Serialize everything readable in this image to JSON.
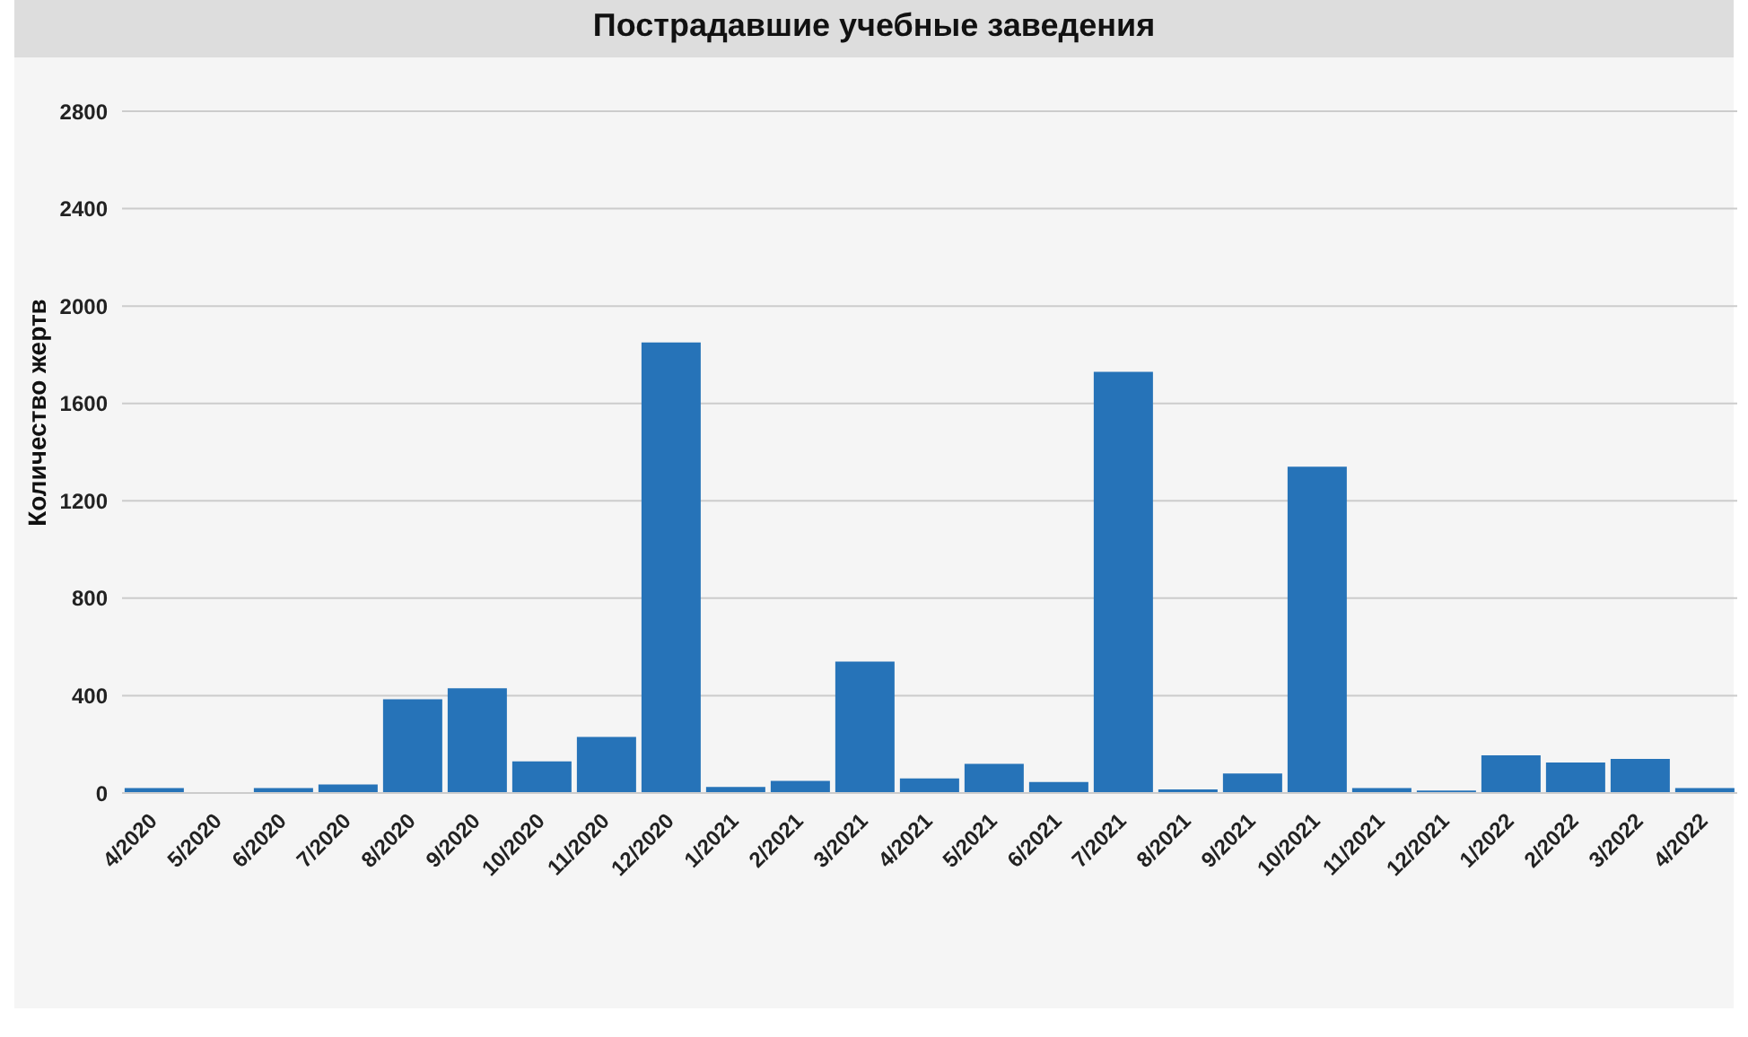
{
  "chart_data": {
    "type": "bar",
    "title": "Пострадавшие учебные заведения",
    "ylabel": "Количество жертв",
    "categories": [
      "4/2020",
      "5/2020",
      "6/2020",
      "7/2020",
      "8/2020",
      "9/2020",
      "10/2020",
      "11/2020",
      "12/2020",
      "1/2021",
      "2/2021",
      "3/2021",
      "4/2021",
      "5/2021",
      "6/2021",
      "7/2021",
      "8/2021",
      "9/2021",
      "10/2021",
      "11/2021",
      "12/2021",
      "1/2022",
      "2/2022",
      "3/2022",
      "4/2022"
    ],
    "values": [
      20,
      0,
      20,
      35,
      385,
      430,
      130,
      230,
      1850,
      25,
      50,
      540,
      60,
      120,
      45,
      1730,
      15,
      80,
      1340,
      20,
      10,
      155,
      125,
      140,
      20
    ],
    "color": "#2673b8",
    "ylim": [
      0,
      2800
    ],
    "yticks": [
      0,
      400,
      800,
      1200,
      1600,
      2000,
      2400,
      2800
    ],
    "grid": "y"
  }
}
